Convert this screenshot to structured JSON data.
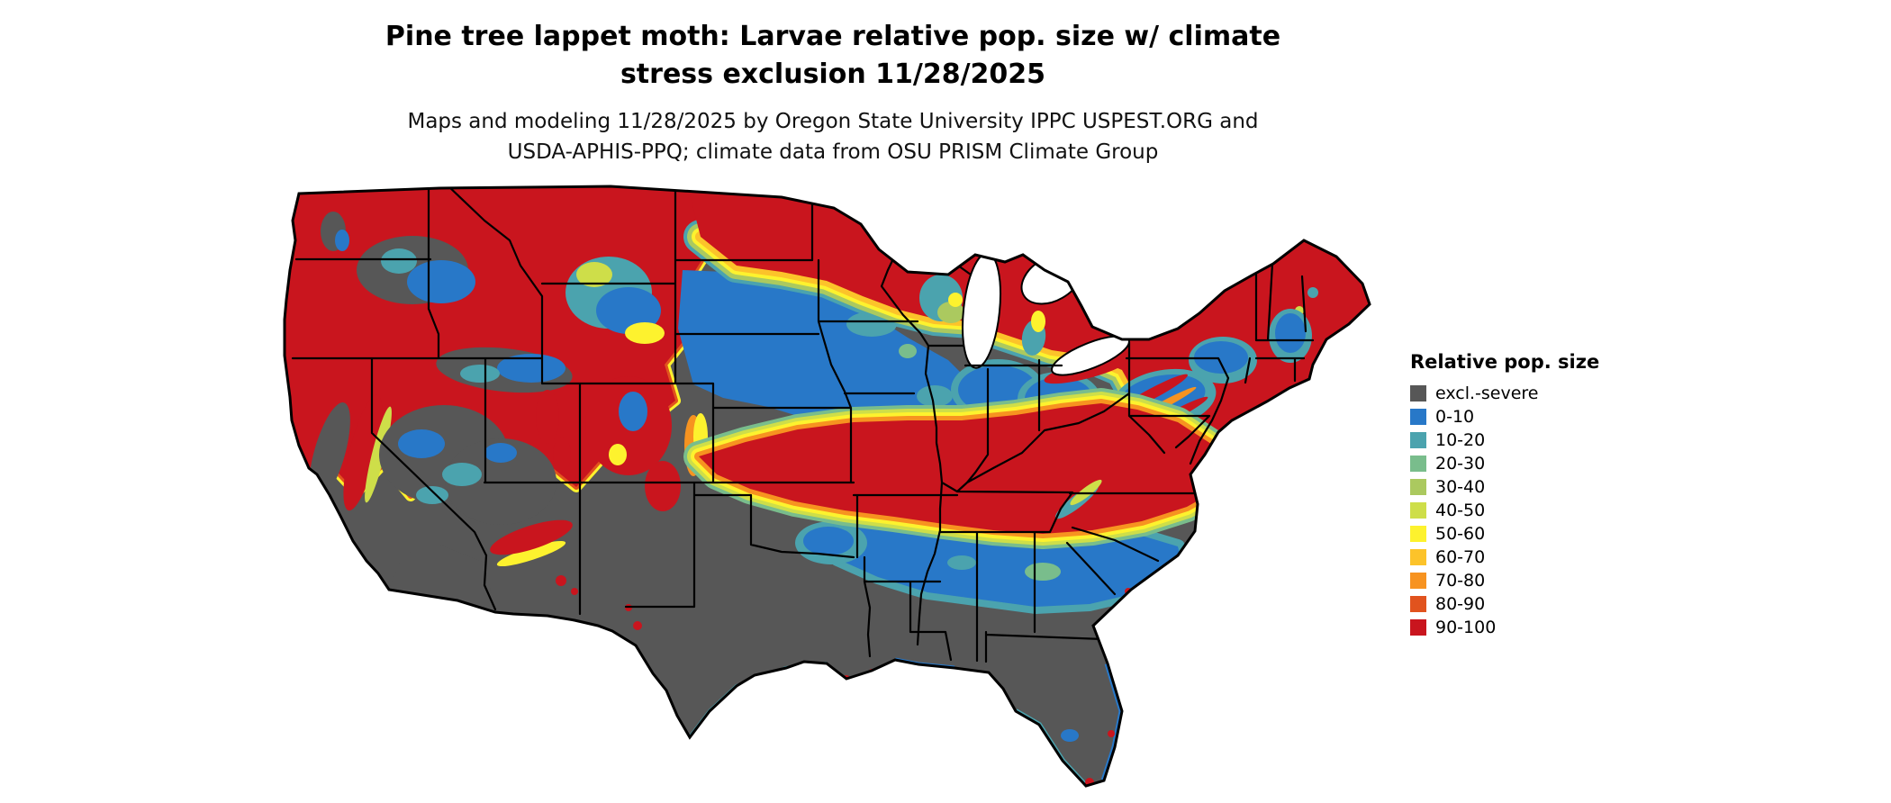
{
  "header": {
    "title_lines": [
      "Pine tree lappet moth: Larvae relative pop. size w/ climate",
      "stress exclusion 11/28/2025"
    ],
    "subtitle_lines": [
      "Maps and modeling 11/28/2025 by Oregon State University IPPC USPEST.ORG and",
      "USDA-APHIS-PPQ; climate data from OSU PRISM Climate Group"
    ]
  },
  "map": {
    "outline_color": "#000000",
    "state_border_color": "#000000",
    "water_color": "#ffffff"
  },
  "legend": {
    "title": "Relative pop. size",
    "items": [
      {
        "label": "excl.-severe",
        "color": "#575757"
      },
      {
        "label": "0-10",
        "color": "#2878c8"
      },
      {
        "label": "10-20",
        "color": "#4ba3ae"
      },
      {
        "label": "20-30",
        "color": "#79bd8c"
      },
      {
        "label": "30-40",
        "color": "#abc95f"
      },
      {
        "label": "40-50",
        "color": "#cede49"
      },
      {
        "label": "50-60",
        "color": "#fdf22e"
      },
      {
        "label": "60-70",
        "color": "#fcc32a"
      },
      {
        "label": "70-80",
        "color": "#f79320"
      },
      {
        "label": "80-90",
        "color": "#e1531e"
      },
      {
        "label": "90-100",
        "color": "#c9151e"
      }
    ]
  }
}
